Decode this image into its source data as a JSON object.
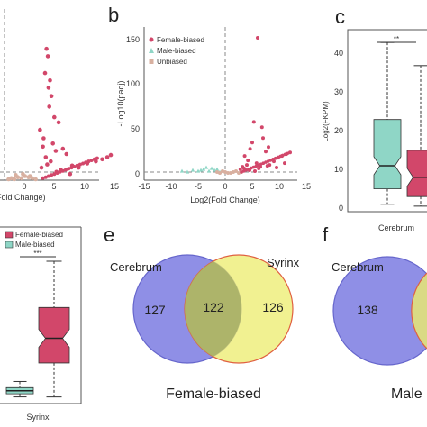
{
  "panels": {
    "a": {
      "xlabel_partial": "Fold Change)",
      "xticks": [
        "0",
        "5",
        "10",
        "15"
      ]
    },
    "b": {
      "letter": "b",
      "xlabel": "Log2(Fold Change)",
      "ylabel": "-Log10(padj)",
      "xticks": [
        "-15",
        "-10",
        "-5",
        "0",
        "5",
        "10",
        "15"
      ],
      "yticks": [
        "0",
        "50",
        "100",
        "150"
      ],
      "legend": [
        "Female-biased",
        "Male-biased",
        "Unbiased"
      ]
    },
    "c": {
      "letter": "c",
      "ylabel": "Log2(FKPM)",
      "yticks": [
        "0",
        "10",
        "20",
        "30",
        "40"
      ],
      "xlabel": "Cerebrum",
      "sig": "**"
    },
    "d": {
      "legend": [
        "Female-biased",
        "Male-biased"
      ],
      "sig": "***",
      "xlabel": "Syrinx"
    },
    "e": {
      "letter": "e",
      "set_left": "Cerebrum",
      "set_right": "Syrinx",
      "left_only": "127",
      "overlap": "122",
      "right_only": "126",
      "title": "Female-biased"
    },
    "f": {
      "letter": "f",
      "set_left": "Cerebrum",
      "left_only": "138",
      "title_partial": "Male"
    }
  },
  "colors": {
    "female": "#d2476a",
    "male": "#8fd6c6",
    "unbiased": "#d8b0a0",
    "venn_left": "#8f8fe6",
    "venn_right": "#ecec6c"
  },
  "chart_data": [
    {
      "type": "scatter",
      "panel": "a",
      "xlabel": "Fold Change)",
      "xlim": [
        -2,
        15
      ],
      "ylim": [
        -5,
        150
      ],
      "series": [
        {
          "name": "Female-biased",
          "color": "#d2476a",
          "x": [
            5.5,
            5.7,
            5.3,
            6.0,
            5.8,
            6.2,
            5.9,
            6.6,
            7.2,
            4.6,
            5.1,
            6.4,
            5.0,
            7.8,
            8.3,
            9.1,
            10.0,
            11.2,
            12.4,
            13.3,
            14.0,
            14.5,
            6.8,
            5.4,
            6.1,
            5.6,
            4.8,
            7.5,
            6.9,
            8.8
          ],
          "y": [
            125,
            118,
            102,
            95,
            88,
            80,
            70,
            60,
            55,
            48,
            40,
            35,
            32,
            30,
            25,
            14,
            12,
            16,
            18,
            20,
            22,
            24,
            28,
            22,
            18,
            15,
            12,
            10,
            8,
            6
          ]
        },
        {
          "name": "Unbiased",
          "color": "#d8b0a0",
          "x": [
            0.2,
            0.6,
            1.0,
            1.5,
            2.0,
            2.5,
            3.0,
            3.5,
            4.0,
            1.2,
            2.2,
            3.2
          ],
          "y": [
            1,
            2,
            1,
            3,
            2,
            4,
            3,
            2,
            1,
            5,
            6,
            4
          ]
        }
      ]
    },
    {
      "type": "scatter",
      "panel": "b",
      "title": "",
      "xlabel": "Log2(Fold Change)",
      "ylabel": "-Log10(padj)",
      "xlim": [
        -15,
        15
      ],
      "ylim": [
        -5,
        155
      ],
      "legend_position": "top-left",
      "series": [
        {
          "name": "Female-biased",
          "color": "#d2476a",
          "x": [
            6.0,
            5.3,
            4.6,
            6.8,
            7.5,
            8.2,
            9.0,
            9.8,
            10.5,
            11.3,
            12.0,
            4.2,
            5.8,
            6.5,
            3.5,
            4.0,
            3.6,
            5.0,
            7.0,
            8.0,
            2.8,
            3.2,
            4.5,
            5.5,
            6.2,
            7.8,
            9.5,
            11.0
          ],
          "y": [
            152,
            58,
            28,
            52,
            25,
            10,
            14,
            18,
            20,
            22,
            24,
            15,
            12,
            8,
            6,
            10,
            20,
            35,
            40,
            30,
            5,
            8,
            4,
            3,
            6,
            9,
            7,
            12
          ]
        },
        {
          "name": "Male-biased",
          "color": "#8fd6c6",
          "x": [
            -1,
            -2,
            -3,
            -4,
            -5,
            -6,
            -7,
            -8,
            -2.5,
            -3.5,
            -4.5,
            -1.5
          ],
          "y": [
            2,
            4,
            3,
            5,
            3,
            4,
            2,
            3,
            6,
            7,
            4,
            5
          ]
        },
        {
          "name": "Unbiased",
          "color": "#d8b0a0",
          "x": [
            -1,
            0,
            1,
            2,
            -0.5,
            0.5,
            1.5,
            2.5,
            -1.5,
            3
          ],
          "y": [
            1,
            2,
            1,
            3,
            3,
            1,
            2,
            1,
            2,
            2
          ]
        }
      ]
    },
    {
      "type": "box",
      "panel": "c",
      "ylabel": "Log2(FKPM)",
      "ylim": [
        0,
        45
      ],
      "categories": [
        "Cerebrum"
      ],
      "series": [
        {
          "name": "Female-biased",
          "color": "#8fd6c6",
          "whisker_low": 1,
          "q1": 5,
          "median": 11,
          "q3": 23,
          "whisker_high": 43
        },
        {
          "name": "Male-biased",
          "color": "#d2476a",
          "whisker_low": 0.5,
          "q1": 3,
          "median": 8,
          "q3": 15,
          "whisker_high": 37
        }
      ]
    },
    {
      "type": "box",
      "panel": "d",
      "categories": [
        "Syrinx"
      ],
      "legend_position": "top-left",
      "series": [
        {
          "name": "Male-biased",
          "color": "#8fd6c6",
          "whisker_low": 1,
          "q1": 2,
          "median": 3,
          "q3": 4,
          "whisker_high": 6
        },
        {
          "name": "Female-biased",
          "color": "#d2476a",
          "whisker_low": 1,
          "q1": 12,
          "median": 20,
          "q3": 30,
          "whisker_high": 45
        }
      ]
    }
  ]
}
